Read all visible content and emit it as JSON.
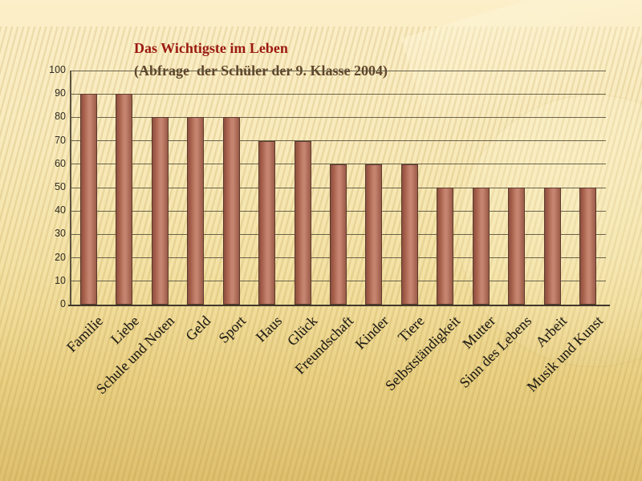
{
  "chart_data": {
    "type": "bar",
    "title": "Das Wichtigste im Leben",
    "subtitle": "(Abfrage  der Schüler der 9. Klasse 2004)",
    "categories": [
      "Familie",
      "Liebe",
      "Schule und Noten",
      "Geld",
      "Sport",
      "Haus",
      "Glück",
      "Freundschaft",
      "Kinder",
      "Tiere",
      "Selbstständigkeit",
      "Mutter",
      "Sinn des Lebens",
      "Arbeit",
      "Musik und Kunst"
    ],
    "values": [
      90,
      90,
      80,
      80,
      80,
      70,
      70,
      60,
      60,
      60,
      50,
      50,
      50,
      50,
      50
    ],
    "xlabel": "",
    "ylabel": "",
    "ylim": [
      0,
      100
    ],
    "yticks": [
      0,
      10,
      20,
      30,
      40,
      50,
      60,
      70,
      80,
      90,
      100
    ],
    "grid": true,
    "legend": false
  },
  "colors": {
    "title_color": "#9b1a10",
    "subtitle_color": "#5e452c",
    "tick_color": "#2e2b22",
    "label_color": "#1d1b15",
    "grid_color": "#5b543f",
    "axis_color": "#3f392b",
    "bar_dark": "#8c4e3d",
    "bar_light": "#c5846f",
    "bar_right": "#9a5a47",
    "bar_border": "#5c3a2d",
    "bg_top": "#fcefc9",
    "bg_mid": "#f4e2a6",
    "bg_bottom": "#e5c878",
    "stripe_color": "rgba(164,128,42,0.17)"
  }
}
